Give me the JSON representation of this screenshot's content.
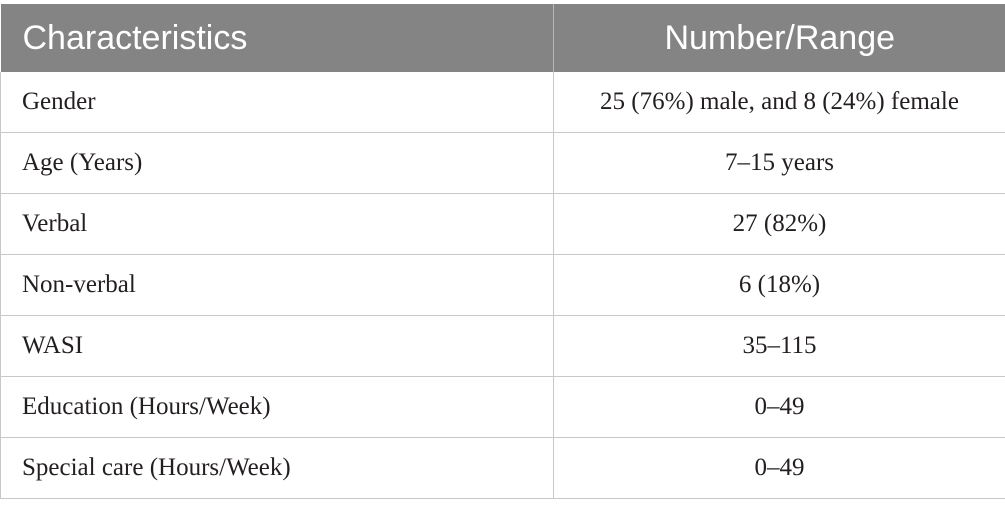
{
  "table": {
    "headers": [
      "Characteristics",
      "Number/Range"
    ],
    "rows": [
      [
        "Gender",
        "25 (76%) male, and 8 (24%) female"
      ],
      [
        "Age (Years)",
        "7–15 years"
      ],
      [
        "Verbal",
        "27 (82%)"
      ],
      [
        "Non-verbal",
        "6 (18%)"
      ],
      [
        "WASI",
        "35–115"
      ],
      [
        "Education (Hours/Week)",
        "0–49"
      ],
      [
        "Special care (Hours/Week)",
        "0–49"
      ]
    ]
  },
  "colors": {
    "header_bg": "#848484",
    "header_text": "#ffffff",
    "body_text": "#231f20",
    "grid": "#c8c8c8"
  }
}
